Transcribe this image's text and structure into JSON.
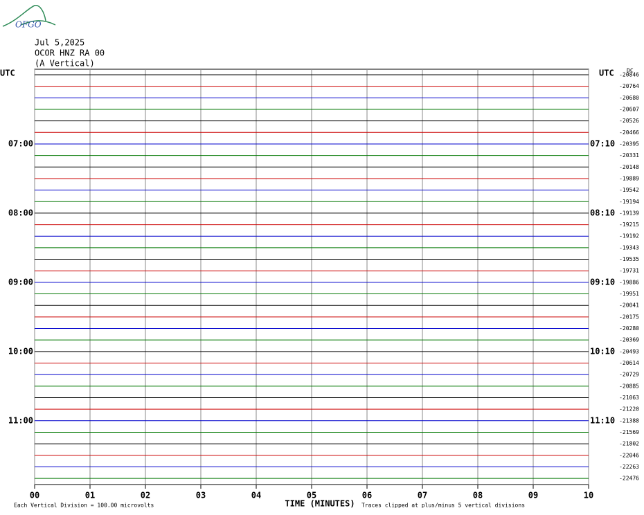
{
  "chart_data": {
    "type": "helicorder",
    "logo": "OFGO",
    "title": "Jul 5,2025",
    "subtitle": "OCOR HNZ RA 00",
    "component": "(A Vertical)",
    "left_axis_title": "UTC",
    "right_axis_title": "UTC",
    "offset_title": "DC",
    "xlabel": "TIME (MINUTES)",
    "xlim": [
      0,
      10
    ],
    "xticks": [
      {
        "value": 0,
        "label": "00"
      },
      {
        "value": 1,
        "label": "01"
      },
      {
        "value": 2,
        "label": "02"
      },
      {
        "value": 3,
        "label": "03"
      },
      {
        "value": 4,
        "label": "04"
      },
      {
        "value": 5,
        "label": "05"
      },
      {
        "value": 6,
        "label": "06"
      },
      {
        "value": 7,
        "label": "07"
      },
      {
        "value": 8,
        "label": "08"
      },
      {
        "value": 9,
        "label": "09"
      },
      {
        "value": 10,
        "label": "10"
      }
    ],
    "colors": [
      "#000000",
      "#cc0000",
      "#0000cc",
      "#007700"
    ],
    "offsets": [
      -20846,
      -20764,
      -20680,
      -20607,
      -20526,
      -20466,
      -20395,
      -20331,
      -20148,
      -19889,
      -19542,
      -19194,
      -19139,
      -19215,
      -19192,
      -19343,
      -19535,
      -19731,
      -19886,
      -19951,
      -20041,
      -20175,
      -20280,
      -20369,
      -20493,
      -20614,
      -20729,
      -20885,
      -21063,
      -21220,
      -21388,
      -21569,
      -21802,
      -22046,
      -22263,
      -22476
    ],
    "left_labels": [
      null,
      null,
      null,
      null,
      null,
      null,
      "07:00",
      null,
      null,
      null,
      null,
      null,
      "08:00",
      null,
      null,
      null,
      null,
      null,
      "09:00",
      null,
      null,
      null,
      null,
      null,
      "10:00",
      null,
      null,
      null,
      null,
      null,
      "11:00",
      null,
      null,
      null,
      null,
      null
    ],
    "right_labels": [
      null,
      null,
      null,
      null,
      null,
      null,
      "07:10",
      null,
      null,
      null,
      null,
      null,
      "08:10",
      null,
      null,
      null,
      null,
      null,
      "09:10",
      null,
      null,
      null,
      null,
      null,
      "10:10",
      null,
      null,
      null,
      null,
      null,
      "11:10",
      null,
      null,
      null,
      null,
      null
    ],
    "notes": [
      "Each Vertical Division =  100.00 microvolts",
      "Traces clipped at plus/minus 5 vertical divisions"
    ]
  }
}
